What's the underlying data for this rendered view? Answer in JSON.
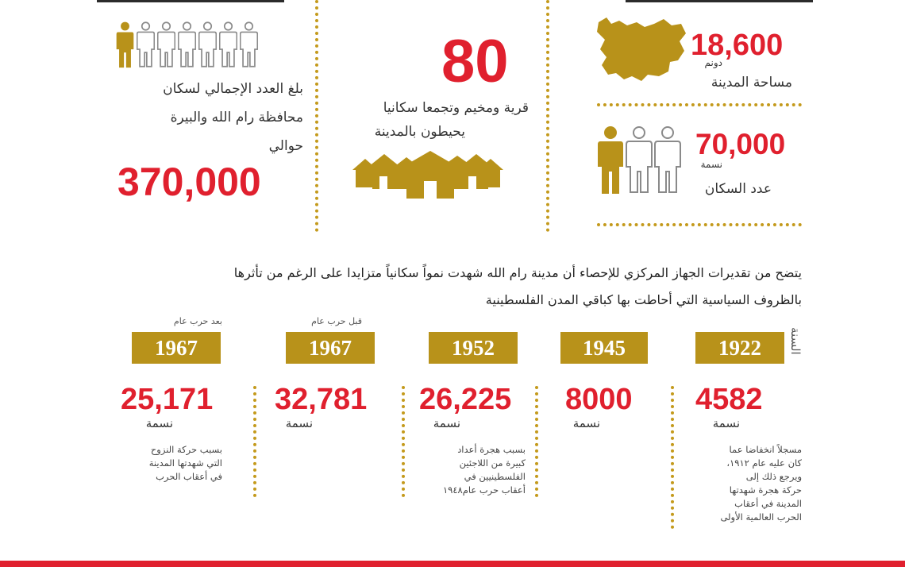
{
  "area": {
    "value": "18,600",
    "unit": "دونم",
    "label": "مساحة المدينة"
  },
  "city_population": {
    "value": "70,000",
    "unit": "نسمة",
    "label": "عدد السكان"
  },
  "villages": {
    "value": "80",
    "line1": "قرية ومخيم وتجمعا سكانيا",
    "line2": "يحيطون بالمدينة"
  },
  "governorate": {
    "line1": "بلغ العدد الإجمالي لسكان",
    "line2": "محافظة رام الله والبيرة",
    "line3": "حوالي",
    "value": "370,000"
  },
  "intro": {
    "line1": "يتضح من تقديرات الجهاز المركزي للإحصاء أن مدينة رام الله شهدت نمواً سكانياً متزايدا على الرغم من تأثرها",
    "line2": "بالظروف السياسية التي أحاطت بها كباقي المدن الفلسطينية"
  },
  "year_axis_label": "السنة",
  "timeline": [
    {
      "year": "1922",
      "above": "",
      "value": "4582",
      "unit": "نسمة",
      "note": [
        "مسجلاً انخفاضا عما",
        "كان عليه عام ١٩١٢،",
        "ويرجع ذلك إلى",
        "حركة هجرة شهدتها",
        "المدينة في أعقاب",
        "الحرب العالمية الأولى"
      ]
    },
    {
      "year": "1945",
      "above": "",
      "value": "8000",
      "unit": "نسمة",
      "note": []
    },
    {
      "year": "1952",
      "above": "",
      "value": "26,225",
      "unit": "نسمة",
      "note": [
        "بسبب هجرة أعداد",
        "كبيرة من اللاجئين",
        "الفلسطينيين في",
        "أعقاب حرب عام١٩٤٨"
      ]
    },
    {
      "year": "1967",
      "above": "قبل حرب عام",
      "value": "32,781",
      "unit": "نسمة",
      "note": []
    },
    {
      "year": "1967",
      "above": "بعد حرب عام",
      "value": "25,171",
      "unit": "نسمة",
      "note": [
        "بسبب حركة النزوح",
        "التي شهدتها المدينة",
        "في أعقاب الحرب"
      ]
    }
  ],
  "icons": {
    "map": "map-silhouette-icon",
    "people": "people-icon",
    "houses": "houses-icon"
  },
  "colors": {
    "gold": "#b8921a",
    "red": "#e0202e"
  }
}
